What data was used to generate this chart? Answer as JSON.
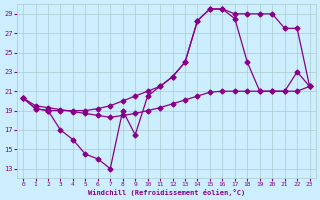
{
  "xlabel": "Windchill (Refroidissement éolien,°C)",
  "background_color": "#cceeff",
  "line_color": "#880088",
  "grid_color": "#aacccc",
  "text_color": "#880088",
  "xlim": [
    -0.5,
    23.5
  ],
  "ylim": [
    12,
    30
  ],
  "yticks": [
    13,
    15,
    17,
    19,
    21,
    23,
    25,
    27,
    29
  ],
  "xticks": [
    0,
    1,
    2,
    3,
    4,
    5,
    6,
    7,
    8,
    9,
    10,
    11,
    12,
    13,
    14,
    15,
    16,
    17,
    18,
    19,
    20,
    21,
    22,
    23
  ],
  "line1_x": [
    0,
    1,
    2,
    3,
    4,
    5,
    6,
    7,
    8,
    9,
    10,
    11,
    12,
    13,
    14,
    15,
    16,
    17,
    18,
    19,
    20,
    21,
    22,
    23
  ],
  "line1_y": [
    20.3,
    19.2,
    19.0,
    17.0,
    16.0,
    14.5,
    14.0,
    13.0,
    19.0,
    16.5,
    20.5,
    21.5,
    22.5,
    24.0,
    28.3,
    29.5,
    29.5,
    29.0,
    29.0,
    29.0,
    29.0,
    27.5,
    27.5,
    21.5
  ],
  "line2_x": [
    0,
    1,
    2,
    3,
    4,
    5,
    6,
    7,
    8,
    9,
    10,
    11,
    12,
    13,
    14,
    15,
    16,
    17,
    18,
    19,
    20,
    21,
    22,
    23
  ],
  "line2_y": [
    20.3,
    19.5,
    19.3,
    19.1,
    18.9,
    18.7,
    18.5,
    18.3,
    18.5,
    18.7,
    19.0,
    19.3,
    19.7,
    20.1,
    20.5,
    20.9,
    21.0,
    21.0,
    21.0,
    21.0,
    21.0,
    21.0,
    21.0,
    21.5
  ],
  "line3_x": [
    0,
    1,
    2,
    3,
    4,
    5,
    6,
    7,
    8,
    9,
    10,
    11,
    12,
    13,
    14,
    15,
    16,
    17,
    18,
    19,
    20,
    21,
    22,
    23
  ],
  "line3_y": [
    20.3,
    19.2,
    19.0,
    19.0,
    19.0,
    19.0,
    19.2,
    19.5,
    20.0,
    20.5,
    21.0,
    21.5,
    22.5,
    24.0,
    28.3,
    29.5,
    29.5,
    28.5,
    24.0,
    21.0,
    21.0,
    21.0,
    23.0,
    21.5
  ]
}
